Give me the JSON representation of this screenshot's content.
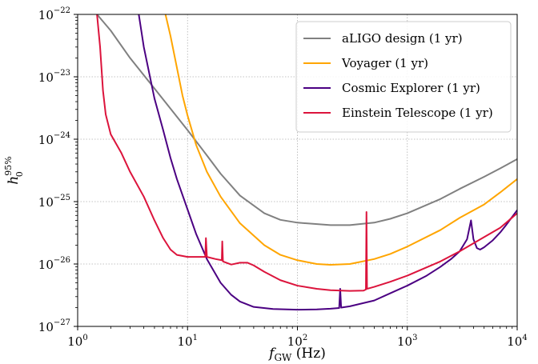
{
  "chart_data": {
    "type": "line",
    "xscale": "log",
    "yscale": "log",
    "xlim": [
      1,
      10000
    ],
    "ylim": [
      1e-27,
      1e-22
    ],
    "grid": true,
    "legend_position": "top-right",
    "xlabel": {
      "main": "f",
      "sub": "GW",
      "unit": " (Hz)"
    },
    "ylabel": {
      "main": "h",
      "sub": "0",
      "sup": "95%"
    },
    "x_ticks": [
      {
        "value": 1,
        "base": "10",
        "exp": "0"
      },
      {
        "value": 10,
        "base": "10",
        "exp": "1"
      },
      {
        "value": 100,
        "base": "10",
        "exp": "2"
      },
      {
        "value": 1000,
        "base": "10",
        "exp": "3"
      },
      {
        "value": 10000,
        "base": "10",
        "exp": "4"
      }
    ],
    "y_ticks": [
      {
        "value": 1e-27,
        "base": "10",
        "exp": "−27"
      },
      {
        "value": 1e-26,
        "base": "10",
        "exp": "−26"
      },
      {
        "value": 1e-25,
        "base": "10",
        "exp": "−25"
      },
      {
        "value": 1e-24,
        "base": "10",
        "exp": "−24"
      },
      {
        "value": 1e-23,
        "base": "10",
        "exp": "−23"
      },
      {
        "value": 1e-22,
        "base": "10",
        "exp": "−22"
      }
    ],
    "series": [
      {
        "name": "aLIGO design (1 yr)",
        "color": "#808080",
        "points": [
          [
            1.5,
            1e-22
          ],
          [
            2,
            5.5e-23
          ],
          [
            3,
            2e-23
          ],
          [
            5,
            6.5e-24
          ],
          [
            10,
            1.4e-24
          ],
          [
            15,
            5.5e-25
          ],
          [
            20,
            2.8e-25
          ],
          [
            30,
            1.25e-25
          ],
          [
            50,
            6.5e-26
          ],
          [
            70,
            5.1e-26
          ],
          [
            100,
            4.6e-26
          ],
          [
            200,
            4.2e-26
          ],
          [
            300,
            4.2e-26
          ],
          [
            500,
            4.6e-26
          ],
          [
            700,
            5.3e-26
          ],
          [
            1000,
            6.5e-26
          ],
          [
            2000,
            1.1e-25
          ],
          [
            3000,
            1.6e-25
          ],
          [
            5000,
            2.5e-25
          ],
          [
            7000,
            3.4e-25
          ],
          [
            10000,
            4.8e-25
          ]
        ]
      },
      {
        "name": "Voyager (1 yr)",
        "color": "#ffa500",
        "points": [
          [
            6.3,
            1e-22
          ],
          [
            7,
            4.5e-23
          ],
          [
            8,
            1.4e-23
          ],
          [
            9,
            5e-24
          ],
          [
            10,
            2.4e-24
          ],
          [
            12,
            8e-25
          ],
          [
            15,
            3e-25
          ],
          [
            20,
            1.2e-25
          ],
          [
            30,
            4.5e-26
          ],
          [
            50,
            2e-26
          ],
          [
            70,
            1.4e-26
          ],
          [
            100,
            1.15e-26
          ],
          [
            150,
            1e-26
          ],
          [
            200,
            9.7e-27
          ],
          [
            300,
            1e-26
          ],
          [
            500,
            1.2e-26
          ],
          [
            700,
            1.45e-26
          ],
          [
            1000,
            1.9e-26
          ],
          [
            2000,
            3.5e-26
          ],
          [
            3000,
            5.5e-26
          ],
          [
            5000,
            9e-26
          ],
          [
            7000,
            1.4e-25
          ],
          [
            10000,
            2.3e-25
          ]
        ]
      },
      {
        "name": "Cosmic Explorer (1 yr)",
        "color": "#4b0082",
        "points": [
          [
            3.6,
            1e-22
          ],
          [
            4,
            3e-23
          ],
          [
            5,
            4.5e-24
          ],
          [
            6,
            1.4e-24
          ],
          [
            7,
            5e-25
          ],
          [
            8,
            2.3e-25
          ],
          [
            10,
            7.5e-26
          ],
          [
            12,
            3e-26
          ],
          [
            15,
            1.2e-26
          ],
          [
            20,
            5e-27
          ],
          [
            25,
            3.2e-27
          ],
          [
            30,
            2.5e-27
          ],
          [
            40,
            2.05e-27
          ],
          [
            60,
            1.9e-27
          ],
          [
            100,
            1.85e-27
          ],
          [
            150,
            1.87e-27
          ],
          [
            200,
            1.92e-27
          ],
          [
            240,
            1.97e-27
          ],
          [
            245,
            4e-27
          ],
          [
            250,
            2e-27
          ],
          [
            300,
            2.1e-27
          ],
          [
            500,
            2.6e-27
          ],
          [
            700,
            3.4e-27
          ],
          [
            1000,
            4.5e-27
          ],
          [
            1500,
            6.5e-27
          ],
          [
            2000,
            9e-27
          ],
          [
            2500,
            1.2e-26
          ],
          [
            3000,
            1.6e-26
          ],
          [
            3500,
            2.5e-26
          ],
          [
            3800,
            5e-26
          ],
          [
            4000,
            2.5e-26
          ],
          [
            4300,
            1.8e-26
          ],
          [
            4600,
            1.7e-26
          ],
          [
            5000,
            1.85e-26
          ],
          [
            6000,
            2.4e-26
          ],
          [
            7000,
            3.2e-26
          ],
          [
            8000,
            4.3e-26
          ],
          [
            10000,
            7.3e-26
          ]
        ]
      },
      {
        "name": "Einstein Telescope (1 yr)",
        "color": "#dc143c",
        "points": [
          [
            1.5,
            1e-22
          ],
          [
            1.6,
            3e-23
          ],
          [
            1.7,
            6e-24
          ],
          [
            1.8,
            2.5e-24
          ],
          [
            2,
            1.2e-24
          ],
          [
            2.5,
            6e-25
          ],
          [
            3,
            3e-25
          ],
          [
            4,
            1.2e-25
          ],
          [
            5,
            5e-26
          ],
          [
            6,
            2.6e-26
          ],
          [
            7,
            1.7e-26
          ],
          [
            8,
            1.4e-26
          ],
          [
            10,
            1.3e-26
          ],
          [
            12,
            1.3e-26
          ],
          [
            14.5,
            1.3e-26
          ],
          [
            14.7,
            2.6e-26
          ],
          [
            15,
            1.3e-26
          ],
          [
            18,
            1.2e-26
          ],
          [
            20.5,
            1.15e-26
          ],
          [
            20.7,
            2.3e-26
          ],
          [
            21,
            1.1e-26
          ],
          [
            25,
            9.8e-27
          ],
          [
            30,
            1.05e-26
          ],
          [
            35,
            1.05e-26
          ],
          [
            40,
            9.5e-27
          ],
          [
            50,
            7.5e-27
          ],
          [
            70,
            5.5e-27
          ],
          [
            100,
            4.5e-27
          ],
          [
            150,
            4e-27
          ],
          [
            200,
            3.8e-27
          ],
          [
            300,
            3.7e-27
          ],
          [
            400,
            3.75e-27
          ],
          [
            420,
            3.9e-27
          ],
          [
            425,
            6.8e-26
          ],
          [
            430,
            4e-27
          ],
          [
            500,
            4.3e-27
          ],
          [
            700,
            5.2e-27
          ],
          [
            1000,
            6.5e-27
          ],
          [
            2000,
            1.1e-26
          ],
          [
            3000,
            1.6e-26
          ],
          [
            5000,
            2.7e-26
          ],
          [
            7000,
            3.8e-26
          ],
          [
            10000,
            6.5e-26
          ]
        ]
      }
    ]
  }
}
